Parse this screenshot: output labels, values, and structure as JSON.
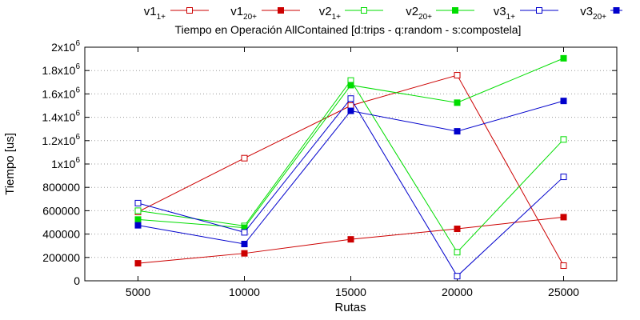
{
  "chart_data": {
    "type": "line",
    "title": "Tiempo en Operación AllContained [d:trips - q:random - s:compostela]",
    "xlabel": "Rutas",
    "ylabel": "Tiempo [us]",
    "x": [
      5000,
      10000,
      15000,
      20000,
      25000
    ],
    "xlim": [
      2500,
      27500
    ],
    "ylim": [
      0,
      2000000
    ],
    "xticks": [
      "5000",
      "10000",
      "15000",
      "20000",
      "25000"
    ],
    "ytick_values": [
      0,
      200000,
      400000,
      600000,
      800000,
      1000000,
      1200000,
      1400000,
      1600000,
      1800000,
      2000000
    ],
    "yticks": [
      {
        "base": "0",
        "exp": ""
      },
      {
        "base": "200000",
        "exp": ""
      },
      {
        "base": "400000",
        "exp": ""
      },
      {
        "base": "600000",
        "exp": ""
      },
      {
        "base": "800000",
        "exp": ""
      },
      {
        "base": "1x10",
        "exp": "6"
      },
      {
        "base": "1.2x10",
        "exp": "6"
      },
      {
        "base": "1.4x10",
        "exp": "6"
      },
      {
        "base": "1.6x10",
        "exp": "6"
      },
      {
        "base": "1.8x10",
        "exp": "6"
      },
      {
        "base": "2x10",
        "exp": "6"
      }
    ],
    "grid": "horizontal-dotted",
    "legend_position": "top",
    "series": [
      {
        "name": "v1",
        "sub": "1+",
        "color": "#cc0000",
        "marker": "open-square",
        "values": [
          590000,
          1050000,
          1500000,
          1760000,
          130000
        ]
      },
      {
        "name": "v1",
        "sub": "20+",
        "color": "#cc0000",
        "marker": "filled-square",
        "values": [
          150000,
          235000,
          355000,
          445000,
          545000
        ]
      },
      {
        "name": "v2",
        "sub": "1+",
        "color": "#00dd00",
        "marker": "open-square",
        "values": [
          600000,
          470000,
          1715000,
          245000,
          1210000
        ]
      },
      {
        "name": "v2",
        "sub": "20+",
        "color": "#00dd00",
        "marker": "filled-square",
        "values": [
          525000,
          455000,
          1675000,
          1525000,
          1905000
        ]
      },
      {
        "name": "v3",
        "sub": "1+",
        "color": "#0000cc",
        "marker": "open-square",
        "values": [
          665000,
          415000,
          1560000,
          40000,
          890000
        ]
      },
      {
        "name": "v3",
        "sub": "20+",
        "color": "#0000cc",
        "marker": "filled-square",
        "values": [
          475000,
          315000,
          1455000,
          1280000,
          1540000
        ]
      }
    ]
  }
}
